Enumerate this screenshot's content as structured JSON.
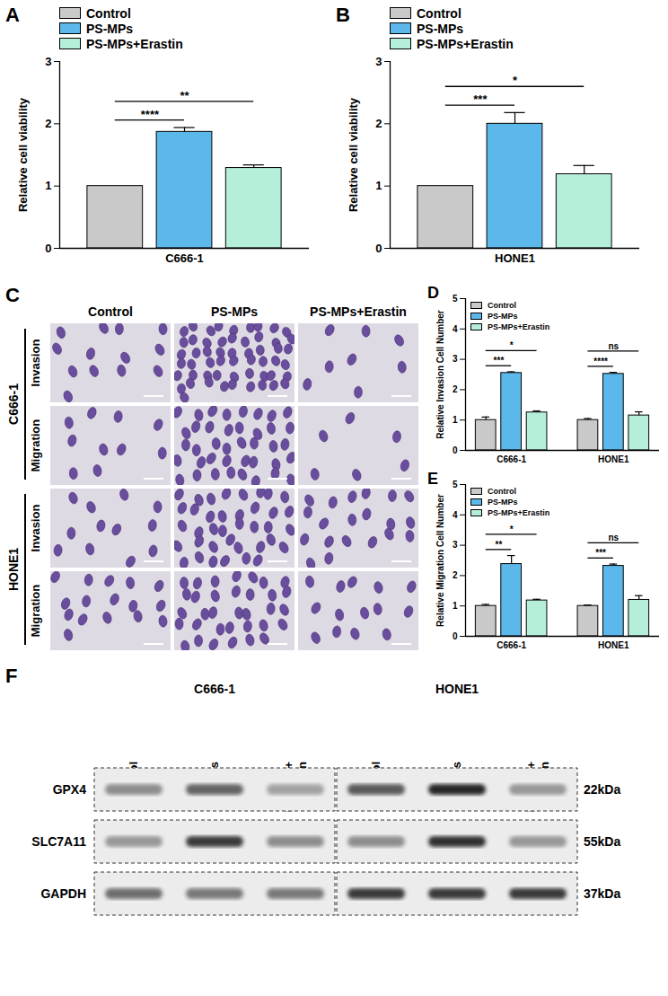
{
  "chart_data": [
    {
      "type": "bar",
      "panel_label": "A",
      "y_label": "Relative cell viability",
      "categories": [
        "C666-1"
      ],
      "series": [
        {
          "name": "Control",
          "color": "#c9c9c9",
          "values": [
            1.0
          ],
          "errors": [
            0
          ]
        },
        {
          "name": "PS-MPs",
          "color": "#5cb8ea",
          "values": [
            1.87
          ],
          "errors": [
            0.07
          ]
        },
        {
          "name": "PS-MPs+Erastin",
          "color": "#b5efd9",
          "values": [
            1.29
          ],
          "errors": [
            0.05
          ]
        }
      ],
      "ylim": [
        0,
        3
      ],
      "yticks": [
        0,
        1,
        2,
        3
      ],
      "legend": "top",
      "annotations": [
        {
          "category": "C666-1",
          "from": "Control",
          "to": "PS-MPs",
          "text": "****"
        },
        {
          "category": "C666-1",
          "from": "Control",
          "to": "PS-MPs+Erastin",
          "text": "**"
        }
      ]
    },
    {
      "type": "bar",
      "panel_label": "B",
      "y_label": "Relative cell viability",
      "categories": [
        "HONE1"
      ],
      "series": [
        {
          "name": "Control",
          "color": "#c9c9c9",
          "values": [
            1.0
          ],
          "errors": [
            0
          ]
        },
        {
          "name": "PS-MPs",
          "color": "#5cb8ea",
          "values": [
            2.0
          ],
          "errors": [
            0.18
          ]
        },
        {
          "name": "PS-MPs+Erastin",
          "color": "#b5efd9",
          "values": [
            1.19
          ],
          "errors": [
            0.14
          ]
        }
      ],
      "ylim": [
        0,
        3
      ],
      "yticks": [
        0,
        1,
        2,
        3
      ],
      "legend": "top",
      "annotations": [
        {
          "category": "HONE1",
          "from": "Control",
          "to": "PS-MPs",
          "text": "***"
        },
        {
          "category": "HONE1",
          "from": "Control",
          "to": "PS-MPs+Erastin",
          "text": "*"
        }
      ]
    },
    {
      "type": "bar",
      "panel_label": "D",
      "y_label": "Relative Invasion Cell Number",
      "categories": [
        "C666-1",
        "HONE1"
      ],
      "series": [
        {
          "name": "Control",
          "color": "#c9c9c9",
          "values": [
            1.0,
            1.0
          ],
          "errors": [
            0.1,
            0.05
          ]
        },
        {
          "name": "PS-MPs",
          "color": "#5cb8ea",
          "values": [
            2.55,
            2.52
          ],
          "errors": [
            0.04,
            0.05
          ]
        },
        {
          "name": "PS-MPs+Erastin",
          "color": "#b5efd9",
          "values": [
            1.25,
            1.15
          ],
          "errors": [
            0.05,
            0.12
          ]
        }
      ],
      "ylim": [
        0,
        5
      ],
      "yticks": [
        0,
        1,
        2,
        3,
        4,
        5
      ],
      "legend": "top-left",
      "annotations": [
        {
          "category": "C666-1",
          "from": "Control",
          "to": "PS-MPs",
          "text": "***"
        },
        {
          "category": "C666-1",
          "from": "Control",
          "to": "PS-MPs+Erastin",
          "text": "*"
        },
        {
          "category": "HONE1",
          "from": "Control",
          "to": "PS-MPs",
          "text": "****"
        },
        {
          "category": "HONE1",
          "from": "Control",
          "to": "PS-MPs+Erastin",
          "text": "ns"
        }
      ]
    },
    {
      "type": "bar",
      "panel_label": "E",
      "y_label": "Relative Migration Cell Number",
      "categories": [
        "C666-1",
        "HONE1"
      ],
      "series": [
        {
          "name": "Control",
          "color": "#c9c9c9",
          "values": [
            1.0,
            1.0
          ],
          "errors": [
            0.05,
            0.03
          ]
        },
        {
          "name": "PS-MPs",
          "color": "#5cb8ea",
          "values": [
            2.38,
            2.32
          ],
          "errors": [
            0.28,
            0.06
          ]
        },
        {
          "name": "PS-MPs+Erastin",
          "color": "#b5efd9",
          "values": [
            1.18,
            1.2
          ],
          "errors": [
            0.04,
            0.14
          ]
        }
      ],
      "ylim": [
        0,
        5
      ],
      "yticks": [
        0,
        1,
        2,
        3,
        4,
        5
      ],
      "legend": "top-left",
      "annotations": [
        {
          "category": "C666-1",
          "from": "Control",
          "to": "PS-MPs",
          "text": "**"
        },
        {
          "category": "C666-1",
          "from": "Control",
          "to": "PS-MPs+Erastin",
          "text": "*"
        },
        {
          "category": "HONE1",
          "from": "Control",
          "to": "PS-MPs",
          "text": "***"
        },
        {
          "category": "HONE1",
          "from": "Control",
          "to": "PS-MPs+Erastin",
          "text": "ns"
        }
      ]
    }
  ],
  "panel_c": {
    "panel_label": "C",
    "columns": [
      "Control",
      "PS-MPs",
      "PS-MPs+Erastin"
    ],
    "groups": [
      {
        "name": "C666-1",
        "rows": [
          {
            "label": "Invasion",
            "cell_counts": [
              13,
              55,
              8
            ]
          },
          {
            "label": "Migration",
            "cell_counts": [
              10,
              40,
              6
            ]
          }
        ]
      },
      {
        "name": "HONE1",
        "rows": [
          {
            "label": "Invasion",
            "cell_counts": [
              12,
              38,
              20
            ]
          },
          {
            "label": "Migration",
            "cell_counts": [
              16,
              34,
              14
            ]
          }
        ]
      }
    ]
  },
  "panel_f": {
    "panel_label": "F",
    "groups": [
      "C666-1",
      "HONE1"
    ],
    "lanes": [
      "Control",
      "PS-MPs",
      "PS-MPs+Erastin"
    ],
    "rows": [
      {
        "protein": "GPX4",
        "size": "22kDa",
        "band_intensity": [
          0.45,
          0.65,
          0.35,
          0.7,
          0.95,
          0.4
        ]
      },
      {
        "protein": "SLC7A11",
        "size": "55kDa",
        "band_intensity": [
          0.4,
          0.85,
          0.45,
          0.45,
          0.9,
          0.4
        ]
      },
      {
        "protein": "GAPDH",
        "size": "37kDa",
        "band_intensity": [
          0.6,
          0.55,
          0.55,
          0.85,
          0.85,
          0.85
        ]
      }
    ]
  }
}
